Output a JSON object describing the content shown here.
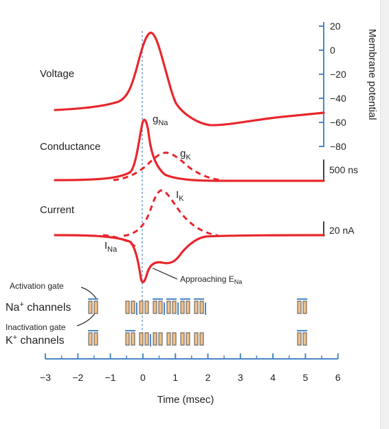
{
  "row_labels": {
    "voltage": "Voltage",
    "conductance": "Conductance",
    "current": "Current"
  },
  "curve_labels": {
    "gna_main": "g",
    "gna_sub": "Na",
    "gk_main": "g",
    "gk_sub": "K",
    "ik_main": "I",
    "ik_sub": "K",
    "ina_main": "I",
    "ina_sub": "Na",
    "approach_main": "Approaching E",
    "approach_sub": "Na"
  },
  "membrane_axis": {
    "title": "Membrane potential",
    "ticks": [
      "20",
      "0",
      "−20",
      "−40",
      "−60",
      "−80"
    ]
  },
  "conductance_scale": "500 ns",
  "current_scale": "20 nA",
  "gates": {
    "activation": "Activation gate",
    "inactivation": "Inactivation gate"
  },
  "channels": {
    "na": {
      "main": "Na",
      "sup": "+",
      "rest": " channels"
    },
    "k": {
      "main": "K",
      "sup": "+",
      "rest": " channels"
    }
  },
  "time_axis": {
    "title": "Time (msec)",
    "ticks": [
      "−3",
      "−2",
      "−1",
      "0",
      "1",
      "2",
      "3",
      "4",
      "5",
      "6"
    ]
  },
  "colors": {
    "trace": "#e8262c",
    "axis": "#4a86c5",
    "gate_fill": "#f0c08a",
    "gate_edge": "#555555",
    "text": "#222222"
  }
}
